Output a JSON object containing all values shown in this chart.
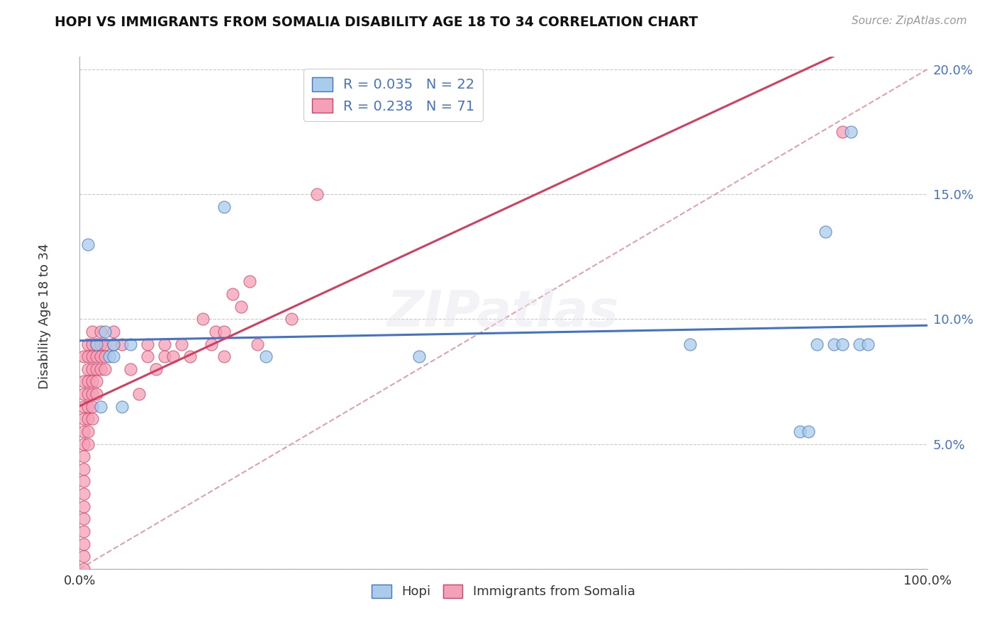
{
  "title": "HOPI VS IMMIGRANTS FROM SOMALIA DISABILITY AGE 18 TO 34 CORRELATION CHART",
  "source": "Source: ZipAtlas.com",
  "ylabel": "Disability Age 18 to 34",
  "xlim": [
    0,
    1.0
  ],
  "ylim": [
    0,
    0.205
  ],
  "yticks": [
    0.0,
    0.05,
    0.1,
    0.15,
    0.2
  ],
  "yticklabels": [
    "",
    "5.0%",
    "10.0%",
    "15.0%",
    "20.0%"
  ],
  "hopi_color": "#A8CCEA",
  "somalia_color": "#F4A0B8",
  "hopi_line_color": "#4472C4",
  "somalia_line_color": "#D04060",
  "diag_line_color": "#E0A0B0",
  "grid_color": "#C8C8C8",
  "R_hopi": 0.035,
  "N_hopi": 22,
  "R_somalia": 0.238,
  "N_somalia": 71,
  "hopi_x": [
    0.01,
    0.02,
    0.025,
    0.03,
    0.035,
    0.04,
    0.04,
    0.05,
    0.06,
    0.17,
    0.22,
    0.4,
    0.72,
    0.85,
    0.86,
    0.87,
    0.88,
    0.89,
    0.9,
    0.91,
    0.92,
    0.93
  ],
  "hopi_y": [
    0.13,
    0.09,
    0.065,
    0.095,
    0.085,
    0.09,
    0.085,
    0.065,
    0.09,
    0.145,
    0.085,
    0.085,
    0.09,
    0.055,
    0.055,
    0.09,
    0.135,
    0.09,
    0.09,
    0.175,
    0.09,
    0.09
  ],
  "somalia_x": [
    0.005,
    0.005,
    0.005,
    0.005,
    0.005,
    0.005,
    0.005,
    0.005,
    0.005,
    0.005,
    0.005,
    0.005,
    0.005,
    0.005,
    0.005,
    0.005,
    0.005,
    0.01,
    0.01,
    0.01,
    0.01,
    0.01,
    0.01,
    0.01,
    0.01,
    0.01,
    0.015,
    0.015,
    0.015,
    0.015,
    0.015,
    0.015,
    0.015,
    0.015,
    0.02,
    0.02,
    0.02,
    0.02,
    0.02,
    0.025,
    0.025,
    0.025,
    0.025,
    0.03,
    0.03,
    0.03,
    0.04,
    0.04,
    0.05,
    0.06,
    0.07,
    0.08,
    0.08,
    0.09,
    0.1,
    0.1,
    0.11,
    0.12,
    0.13,
    0.145,
    0.155,
    0.16,
    0.17,
    0.17,
    0.18,
    0.19,
    0.2,
    0.21,
    0.25,
    0.28,
    0.9
  ],
  "somalia_y": [
    0.085,
    0.075,
    0.07,
    0.065,
    0.06,
    0.055,
    0.05,
    0.045,
    0.04,
    0.035,
    0.03,
    0.025,
    0.02,
    0.015,
    0.01,
    0.005,
    0.0,
    0.09,
    0.085,
    0.08,
    0.075,
    0.07,
    0.065,
    0.06,
    0.055,
    0.05,
    0.095,
    0.09,
    0.085,
    0.08,
    0.075,
    0.07,
    0.065,
    0.06,
    0.09,
    0.085,
    0.08,
    0.075,
    0.07,
    0.095,
    0.09,
    0.085,
    0.08,
    0.09,
    0.085,
    0.08,
    0.095,
    0.09,
    0.09,
    0.08,
    0.07,
    0.085,
    0.09,
    0.08,
    0.09,
    0.085,
    0.085,
    0.09,
    0.085,
    0.1,
    0.09,
    0.095,
    0.095,
    0.085,
    0.11,
    0.105,
    0.115,
    0.09,
    0.1,
    0.15,
    0.175
  ]
}
